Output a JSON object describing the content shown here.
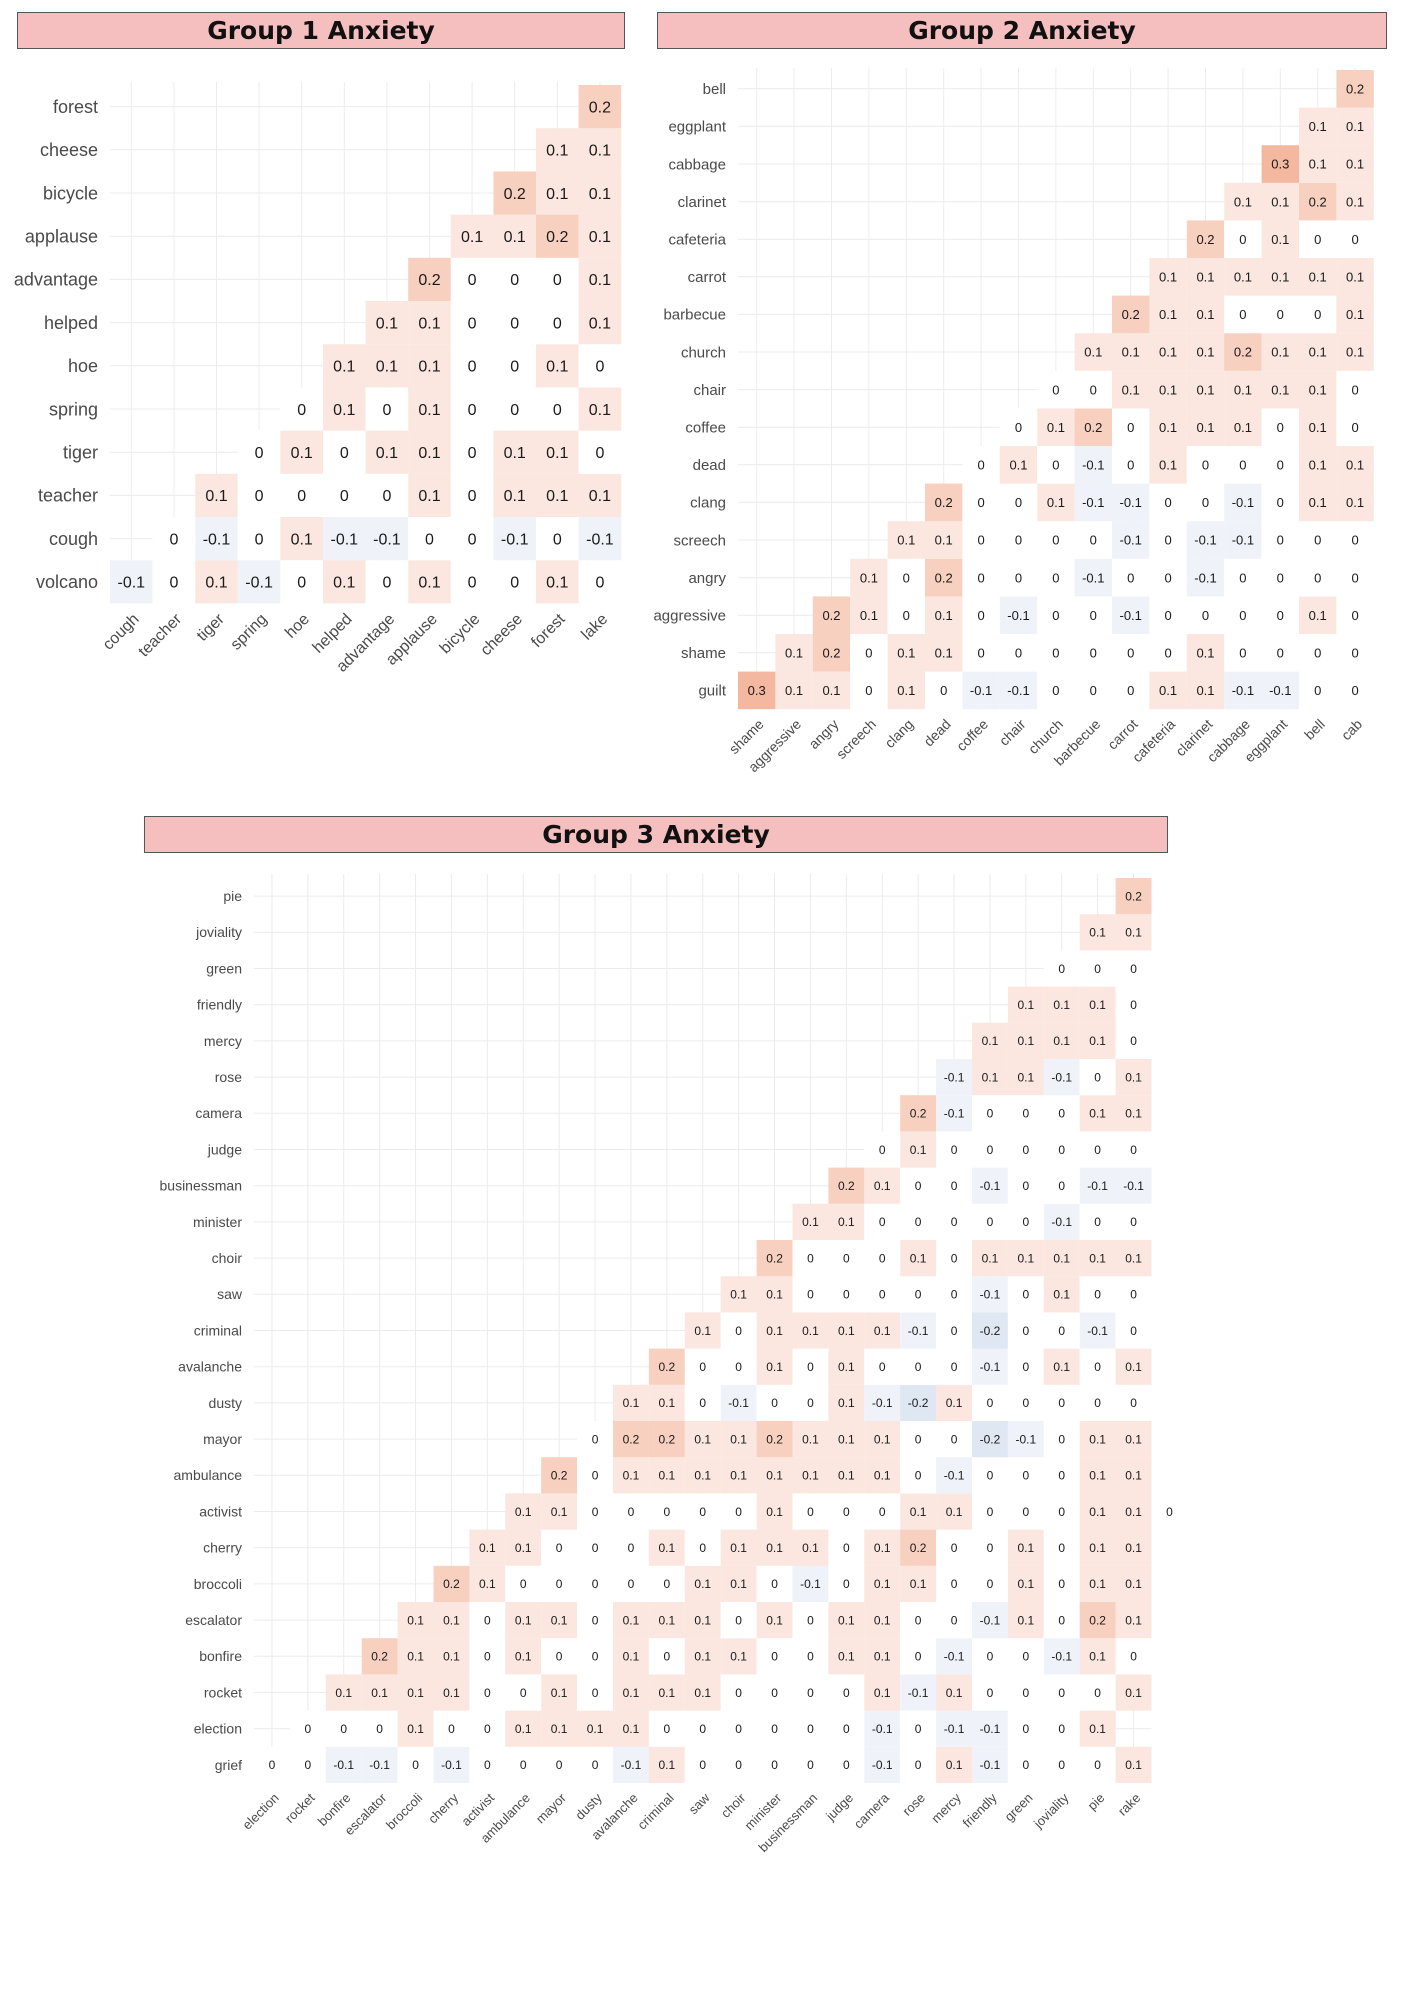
{
  "chart_data": [
    {
      "type": "heatmap",
      "title": "Group 1 Anxiety",
      "x_labels": [
        "cough",
        "teacher",
        "tiger",
        "spring",
        "hoe",
        "helped",
        "advantage",
        "applause",
        "bicycle",
        "cheese",
        "forest",
        "lake"
      ],
      "y_labels": [
        "volcano",
        "cough",
        "teacher",
        "tiger",
        "spring",
        "hoe",
        "helped",
        "advantage",
        "applause",
        "bicycle",
        "cheese",
        "forest"
      ],
      "values": [
        [
          -0.1,
          0,
          0.1,
          -0.1,
          0,
          0.1,
          0,
          0.1,
          0,
          0,
          0.1,
          0
        ],
        [
          0,
          -0.1,
          0,
          0.1,
          -0.1,
          -0.1,
          0,
          0,
          -0.1,
          0,
          -0.1
        ],
        [
          0.1,
          0,
          0,
          0,
          0,
          0.1,
          0,
          0.1,
          0.1,
          0.1
        ],
        [
          0,
          0.1,
          0,
          0.1,
          0.1,
          0,
          0.1,
          0.1,
          0
        ],
        [
          0,
          0.1,
          0,
          0.1,
          0,
          0,
          0,
          0.1
        ],
        [
          0.1,
          0.1,
          0.1,
          0,
          0,
          0.1,
          0
        ],
        [
          0.1,
          0.1,
          0,
          0,
          0,
          0.1
        ],
        [
          0.2,
          0,
          0,
          0,
          0.1
        ],
        [
          0.1,
          0.1,
          0.2,
          0.1
        ],
        [
          0.2,
          0.1,
          0.1
        ],
        [
          0.1,
          0.1
        ],
        [
          0.2
        ]
      ]
    },
    {
      "type": "heatmap",
      "title": "Group 2 Anxiety",
      "x_labels": [
        "shame",
        "aggressive",
        "angry",
        "screech",
        "clang",
        "dead",
        "coffee",
        "chair",
        "church",
        "barbecue",
        "carrot",
        "cafeteria",
        "clarinet",
        "cabbage",
        "eggplant",
        "bell",
        "cab"
      ],
      "y_labels": [
        "guilt",
        "shame",
        "aggressive",
        "angry",
        "screech",
        "clang",
        "dead",
        "coffee",
        "chair",
        "church",
        "barbecue",
        "carrot",
        "cafeteria",
        "clarinet",
        "cabbage",
        "eggplant",
        "bell"
      ],
      "values": [
        [
          0.3,
          0.1,
          0.1,
          0,
          0.1,
          0,
          -0.1,
          -0.1,
          0,
          0,
          0,
          0.1,
          0.1,
          -0.1,
          -0.1,
          0,
          0
        ],
        [
          0.1,
          0.2,
          0,
          0.1,
          0.1,
          0,
          0,
          0,
          0,
          0,
          0,
          0.1,
          0,
          0,
          0,
          0
        ],
        [
          0.2,
          0.1,
          0,
          0.1,
          0,
          -0.1,
          0,
          0,
          -0.1,
          0,
          0,
          0,
          0,
          0.1,
          0
        ],
        [
          0.1,
          0,
          0.2,
          0,
          0,
          0,
          -0.1,
          0,
          0,
          -0.1,
          0,
          0,
          0,
          0
        ],
        [
          0.1,
          0.1,
          0,
          0,
          0,
          0,
          -0.1,
          0,
          -0.1,
          -0.1,
          0,
          0,
          0
        ],
        [
          0.2,
          0,
          0,
          0.1,
          -0.1,
          -0.1,
          0,
          0,
          -0.1,
          0,
          0.1,
          0.1
        ],
        [
          0,
          0.1,
          0,
          -0.1,
          0,
          0.1,
          0,
          0,
          0,
          0.1,
          0.1
        ],
        [
          0,
          0.1,
          0.2,
          0,
          0.1,
          0.1,
          0.1,
          0,
          0.1,
          0
        ],
        [
          0,
          0,
          0.1,
          0.1,
          0.1,
          0.1,
          0.1,
          0.1,
          0
        ],
        [
          0.1,
          0.1,
          0.1,
          0.1,
          0.2,
          0.1,
          0.1,
          0.1
        ],
        [
          0.2,
          0.1,
          0.1,
          0,
          0,
          0,
          0.1
        ],
        [
          0.1,
          0.1,
          0.1,
          0.1,
          0.1,
          0.1
        ],
        [
          0.2,
          0,
          0.1,
          0,
          0
        ],
        [
          0.1,
          0.1,
          0.2,
          0.1
        ],
        [
          0.3,
          0.1,
          0.1
        ],
        [
          0.1,
          0.1
        ],
        [
          0.2
        ]
      ]
    },
    {
      "type": "heatmap",
      "title": "Group 3 Anxiety",
      "x_labels": [
        "election",
        "rocket",
        "bonfire",
        "escalator",
        "broccoli",
        "cherry",
        "activist",
        "ambulance",
        "mayor",
        "dusty",
        "avalanche",
        "criminal",
        "saw",
        "choir",
        "minister",
        "businessman",
        "judge",
        "camera",
        "rose",
        "mercy",
        "friendly",
        "green",
        "joviality",
        "pie",
        "rake"
      ],
      "y_labels": [
        "grief",
        "election",
        "rocket",
        "bonfire",
        "escalator",
        "broccoli",
        "cherry",
        "activist",
        "ambulance",
        "mayor",
        "dusty",
        "avalanche",
        "criminal",
        "saw",
        "choir",
        "minister",
        "businessman",
        "judge",
        "camera",
        "rose",
        "mercy",
        "friendly",
        "green",
        "joviality",
        "pie"
      ],
      "values": [
        [
          0,
          0,
          -0.1,
          -0.1,
          0,
          -0.1,
          0,
          0,
          0,
          0,
          -0.1,
          0.1,
          0,
          0,
          0,
          0,
          0,
          -0.1,
          0,
          0.1,
          -0.1,
          0,
          0,
          0,
          0.1
        ],
        [
          0,
          0,
          0,
          0.1,
          0,
          0,
          0.1,
          0.1,
          0.1,
          0.1,
          0,
          0,
          0,
          0,
          0,
          0,
          -0.1,
          0,
          -0.1,
          -0.1,
          0,
          0,
          0.1
        ],
        [
          0.1,
          0.1,
          0.1,
          0.1,
          0,
          0,
          0.1,
          0,
          0.1,
          0.1,
          0.1,
          0,
          0,
          0,
          0,
          0.1,
          -0.1,
          0.1,
          0,
          0,
          0,
          0,
          0.1
        ],
        [
          0.2,
          0.1,
          0.1,
          0,
          0.1,
          0,
          0,
          0.1,
          0,
          0.1,
          0.1,
          0,
          0,
          0.1,
          0.1,
          0,
          -0.1,
          0,
          0,
          -0.1,
          0.1,
          0
        ],
        [
          0.1,
          0.1,
          0,
          0.1,
          0.1,
          0,
          0.1,
          0.1,
          0.1,
          0,
          0.1,
          0,
          0.1,
          0.1,
          0,
          0,
          -0.1,
          0.1,
          0,
          0.2,
          0.1
        ],
        [
          0.2,
          0.1,
          0,
          0,
          0,
          0,
          0,
          0.1,
          0.1,
          0,
          -0.1,
          0,
          0.1,
          0.1,
          0,
          0,
          0.1,
          0,
          0.1,
          0.1
        ],
        [
          0.1,
          0.1,
          0,
          0,
          0,
          0.1,
          0,
          0.1,
          0.1,
          0.1,
          0,
          0.1,
          0.2,
          0,
          0,
          0.1,
          0,
          0.1,
          0.1
        ],
        [
          0.1,
          0.1,
          0,
          0,
          0,
          0,
          0,
          0.1,
          0,
          0,
          0,
          0.1,
          0.1,
          0,
          0,
          0,
          0.1,
          0.1,
          0
        ],
        [
          0.2,
          0,
          0.1,
          0.1,
          0.1,
          0.1,
          0.1,
          0.1,
          0.1,
          0.1,
          0,
          -0.1,
          0,
          0,
          0,
          0.1,
          0.1
        ],
        [
          0,
          0.2,
          0.2,
          0.1,
          0.1,
          0.2,
          0.1,
          0.1,
          0.1,
          0,
          0,
          -0.2,
          -0.1,
          0,
          0.1,
          0.1
        ],
        [
          0.1,
          0.1,
          0,
          -0.1,
          0,
          0,
          0.1,
          -0.1,
          -0.2,
          0.1,
          0,
          0,
          0,
          0,
          0
        ],
        [
          0.2,
          0,
          0,
          0.1,
          0,
          0.1,
          0,
          0,
          0,
          -0.1,
          0,
          0.1,
          0,
          0.1
        ],
        [
          0.1,
          0,
          0.1,
          0.1,
          0.1,
          0.1,
          -0.1,
          0,
          -0.2,
          0,
          0,
          -0.1,
          0
        ],
        [
          0.1,
          0.1,
          0,
          0,
          0,
          0,
          0,
          -0.1,
          0,
          0.1,
          0,
          0
        ],
        [
          0.2,
          0,
          0,
          0,
          0.1,
          0,
          0.1,
          0.1,
          0.1,
          0.1,
          0.1
        ],
        [
          0.1,
          0.1,
          0,
          0,
          0,
          0,
          0,
          -0.1,
          0,
          0
        ],
        [
          0.2,
          0.1,
          0,
          0,
          -0.1,
          0,
          0,
          -0.1,
          -0.1
        ],
        [
          0,
          0.1,
          0,
          0,
          0,
          0,
          0,
          0
        ],
        [
          0.2,
          -0.1,
          0,
          0,
          0,
          0.1,
          0.1
        ],
        [
          -0.1,
          0.1,
          0.1,
          -0.1,
          0,
          0.1
        ],
        [
          0.1,
          0.1,
          0.1,
          0.1,
          0
        ],
        [
          0.1,
          0.1,
          0.1,
          0
        ],
        [
          0,
          0,
          0
        ],
        [
          0.1,
          0.1
        ],
        [
          0.2
        ]
      ]
    }
  ],
  "colors": {
    "title_fill": "#f6bfbf",
    "positive_max": "#f2b49a",
    "negative_max": "#c9d7ea",
    "neutral": "#ffffff",
    "grid": "#ececec"
  }
}
